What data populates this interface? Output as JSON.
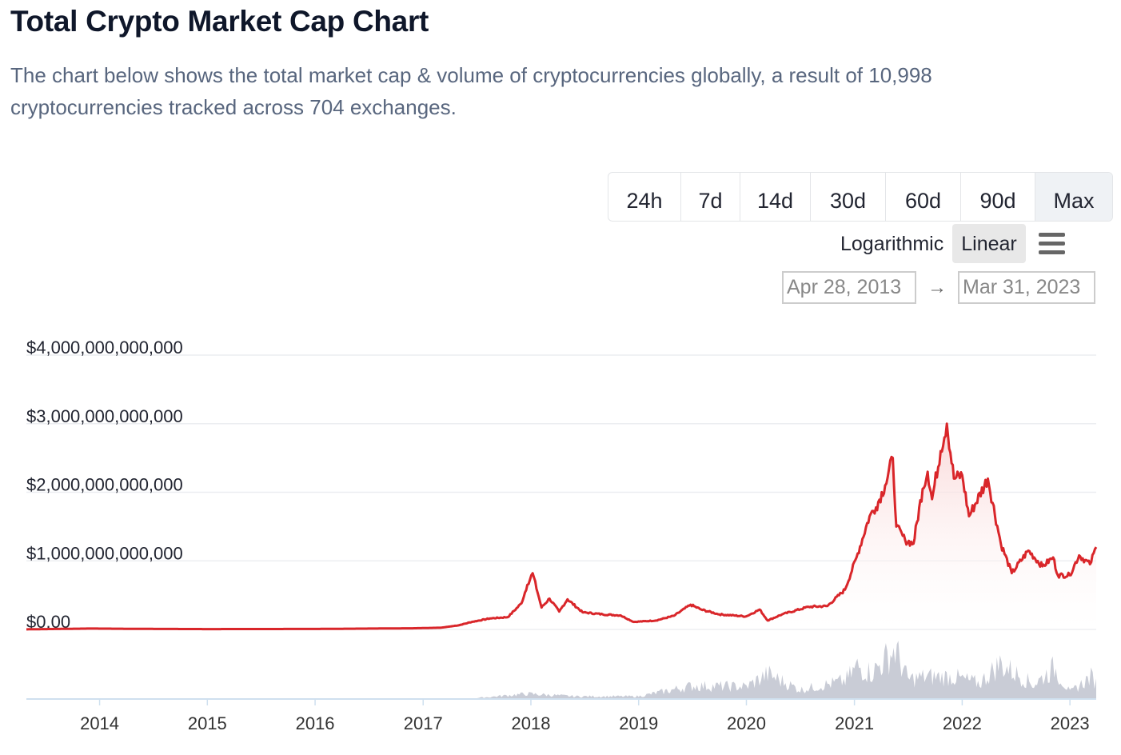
{
  "header": {
    "title": "Total Crypto Market Cap Chart",
    "description": "The chart below shows the total market cap & volume of cryptocurrencies globally, a result of 10,998 cryptocurrencies tracked across 704 exchanges."
  },
  "range_buttons": [
    {
      "label": "24h",
      "active": false
    },
    {
      "label": "7d",
      "active": false
    },
    {
      "label": "14d",
      "active": false
    },
    {
      "label": "30d",
      "active": false
    },
    {
      "label": "60d",
      "active": false
    },
    {
      "label": "90d",
      "active": false
    },
    {
      "label": "Max",
      "active": true
    }
  ],
  "scale": {
    "logarithmic_label": "Logarithmic",
    "linear_label": "Linear",
    "selected": "Linear"
  },
  "date_range": {
    "from": "Apr 28, 2013",
    "arrow": "→",
    "to": "Mar 31, 2023"
  },
  "menu": {
    "icon": "hamburger-menu-icon"
  },
  "colors": {
    "line": "#d9262a",
    "area_top": "#f9d6d6",
    "volume": "#c9ccd6",
    "grid": "#eceef1"
  },
  "chart_data": {
    "type": "area",
    "title": "",
    "xlabel": "",
    "ylabel": "",
    "y_scale": "linear",
    "grid": true,
    "legend": "none",
    "x_range": [
      "2013-04-28",
      "2023-03-31"
    ],
    "ylim": [
      0,
      4000000000000
    ],
    "y_ticks": [
      0,
      1000000000000,
      2000000000000,
      3000000000000,
      4000000000000
    ],
    "y_tick_labels": [
      "$0.00",
      "$1,000,000,000,000",
      "$2,000,000,000,000",
      "$3,000,000,000,000",
      "$4,000,000,000,000"
    ],
    "x_tick_labels": [
      "2014",
      "2015",
      "2016",
      "2017",
      "2018",
      "2019",
      "2020",
      "2021",
      "2022",
      "2023"
    ],
    "series": [
      {
        "kind": "market_cap",
        "points": [
          [
            "2013-04-28",
            1500000000
          ],
          [
            "2013-12-01",
            13000000000
          ],
          [
            "2014-06-01",
            8000000000
          ],
          [
            "2015-01-01",
            5000000000
          ],
          [
            "2016-01-01",
            7000000000
          ],
          [
            "2016-12-01",
            17000000000
          ],
          [
            "2017-03-01",
            25000000000
          ],
          [
            "2017-05-01",
            60000000000
          ],
          [
            "2017-06-15",
            110000000000
          ],
          [
            "2017-08-15",
            160000000000
          ],
          [
            "2017-10-15",
            180000000000
          ],
          [
            "2017-11-30",
            380000000000
          ],
          [
            "2017-12-20",
            650000000000
          ],
          [
            "2018-01-07",
            820000000000
          ],
          [
            "2018-02-06",
            320000000000
          ],
          [
            "2018-03-05",
            450000000000
          ],
          [
            "2018-04-07",
            260000000000
          ],
          [
            "2018-05-05",
            440000000000
          ],
          [
            "2018-06-25",
            250000000000
          ],
          [
            "2018-09-01",
            220000000000
          ],
          [
            "2018-11-01",
            205000000000
          ],
          [
            "2018-12-15",
            110000000000
          ],
          [
            "2019-03-01",
            130000000000
          ],
          [
            "2019-05-01",
            200000000000
          ],
          [
            "2019-06-26",
            360000000000
          ],
          [
            "2019-08-01",
            290000000000
          ],
          [
            "2019-10-01",
            220000000000
          ],
          [
            "2019-12-31",
            190000000000
          ],
          [
            "2020-02-15",
            290000000000
          ],
          [
            "2020-03-13",
            130000000000
          ],
          [
            "2020-05-01",
            220000000000
          ],
          [
            "2020-07-30",
            330000000000
          ],
          [
            "2020-10-01",
            340000000000
          ],
          [
            "2020-11-30",
            580000000000
          ],
          [
            "2021-01-08",
            1050000000000
          ],
          [
            "2021-02-21",
            1650000000000
          ],
          [
            "2021-03-15",
            1780000000000
          ],
          [
            "2021-04-15",
            2100000000000
          ],
          [
            "2021-05-11",
            2500000000000
          ],
          [
            "2021-05-23",
            1500000000000
          ],
          [
            "2021-06-22",
            1300000000000
          ],
          [
            "2021-07-20",
            1250000000000
          ],
          [
            "2021-08-20",
            2050000000000
          ],
          [
            "2021-09-06",
            2300000000000
          ],
          [
            "2021-09-21",
            1900000000000
          ],
          [
            "2021-10-20",
            2600000000000
          ],
          [
            "2021-11-10",
            3000000000000
          ],
          [
            "2021-12-04",
            2200000000000
          ],
          [
            "2022-01-01",
            2250000000000
          ],
          [
            "2022-01-24",
            1650000000000
          ],
          [
            "2022-03-29",
            2200000000000
          ],
          [
            "2022-05-12",
            1250000000000
          ],
          [
            "2022-06-18",
            820000000000
          ],
          [
            "2022-08-13",
            1150000000000
          ],
          [
            "2022-09-30",
            920000000000
          ],
          [
            "2022-11-05",
            1050000000000
          ],
          [
            "2022-11-21",
            790000000000
          ],
          [
            "2022-12-31",
            790000000000
          ],
          [
            "2023-02-01",
            1080000000000
          ],
          [
            "2023-03-10",
            950000000000
          ],
          [
            "2023-03-31",
            1200000000000
          ]
        ]
      },
      {
        "kind": "volume",
        "ylim": [
          0,
          400000000000
        ],
        "points": [
          [
            "2013-04-28",
            0
          ],
          [
            "2017-06-01",
            2000000000
          ],
          [
            "2017-12-20",
            40000000000
          ],
          [
            "2018-06-01",
            20000000000
          ],
          [
            "2019-01-01",
            20000000000
          ],
          [
            "2019-04-01",
            60000000000
          ],
          [
            "2019-07-01",
            100000000000
          ],
          [
            "2020-01-01",
            95000000000
          ],
          [
            "2020-03-13",
            190000000000
          ],
          [
            "2020-07-01",
            70000000000
          ],
          [
            "2020-12-01",
            140000000000
          ],
          [
            "2021-01-11",
            250000000000
          ],
          [
            "2021-03-01",
            200000000000
          ],
          [
            "2021-05-19",
            380000000000
          ],
          [
            "2021-07-01",
            150000000000
          ],
          [
            "2021-09-01",
            170000000000
          ],
          [
            "2021-12-01",
            170000000000
          ],
          [
            "2022-03-01",
            120000000000
          ],
          [
            "2022-05-09",
            270000000000
          ],
          [
            "2022-06-13",
            220000000000
          ],
          [
            "2022-09-01",
            110000000000
          ],
          [
            "2022-11-09",
            240000000000
          ],
          [
            "2023-01-01",
            50000000000
          ],
          [
            "2023-03-13",
            170000000000
          ],
          [
            "2023-03-31",
            130000000000
          ]
        ]
      }
    ]
  }
}
